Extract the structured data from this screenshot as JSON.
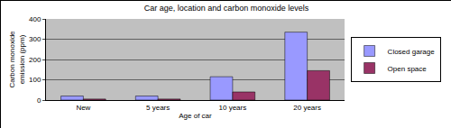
{
  "chart_data": {
    "type": "bar",
    "title": "Car age, location and carbon monoxide levels",
    "x_label": "Age of car",
    "y_label": "Carbon monoxide emission (ppm)",
    "categories": [
      "New",
      "5 years",
      "10 years",
      "20 years"
    ],
    "series": [
      {
        "name": "Closed garage",
        "color": "#9999ff",
        "values": [
          20,
          20,
          115,
          335
        ]
      },
      {
        "name": "Open space",
        "color": "#993366",
        "values": [
          5,
          5,
          40,
          145
        ]
      }
    ],
    "ylim": [
      0,
      400
    ],
    "yticks": [
      0,
      100,
      200,
      300,
      400
    ],
    "grid": true,
    "legend": "right"
  }
}
